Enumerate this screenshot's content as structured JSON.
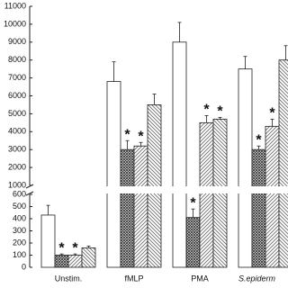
{
  "chart_data": {
    "type": "bar",
    "categories": [
      "Unstim.",
      "fMLP",
      "PMA",
      "S.epiderm"
    ],
    "ylim": [
      0,
      11000
    ],
    "ybreak": [
      600,
      1000
    ],
    "yticks": [
      0,
      100,
      200,
      300,
      400,
      500,
      600,
      1000,
      2000,
      3000,
      4000,
      5000,
      6000,
      7000,
      8000,
      9000,
      10000,
      11000
    ],
    "series": [
      {
        "color": "#ffffff",
        "pattern": "none",
        "values": [
          430,
          6800,
          9000,
          7500
        ],
        "errors": [
          80,
          1100,
          1100,
          700
        ],
        "significance": [
          null,
          null,
          null,
          null
        ]
      },
      {
        "color": "#555555",
        "pattern": "crosshatch",
        "values": [
          100,
          3000,
          410,
          3000
        ],
        "errors": [
          10,
          500,
          70,
          200
        ],
        "significance": [
          "*",
          "*",
          "*",
          "*"
        ]
      },
      {
        "color": "#777777",
        "pattern": "hatch-right",
        "values": [
          100,
          3200,
          4500,
          4300
        ],
        "errors": [
          10,
          200,
          400,
          400
        ],
        "significance": [
          "*",
          "*",
          "*",
          "*"
        ]
      },
      {
        "color": "#777777",
        "pattern": "hatch-left",
        "values": [
          160,
          5500,
          4700,
          8000
        ],
        "errors": [
          15,
          600,
          100,
          800
        ],
        "significance": [
          null,
          null,
          "*",
          null
        ]
      }
    ]
  }
}
